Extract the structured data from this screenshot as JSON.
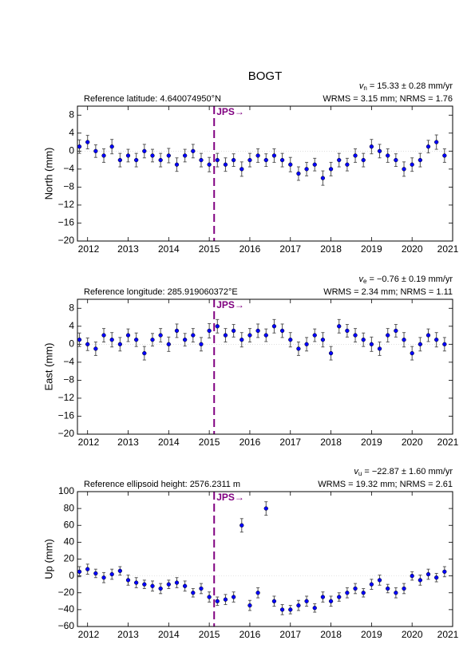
{
  "chart_data": [
    {
      "type": "scatter",
      "title": "BOGT",
      "ylabel": "North (mm)",
      "reference": "Reference latitude: 4.640074950°N",
      "velocity": {
        "symbol": "v",
        "subscript": "n",
        "text": " = 15.33 ± 0.28 mm/yr"
      },
      "stats": "WRMS = 3.15 mm; NRMS = 1.76",
      "event": {
        "label": "JPS→",
        "x": 2015.12,
        "color": "#800080"
      },
      "xlim": [
        2011.75,
        2021
      ],
      "xticks": [
        2012,
        2013,
        2014,
        2015,
        2016,
        2017,
        2018,
        2019,
        2020,
        2021
      ],
      "ylim": [
        -20,
        10
      ],
      "yticks": [
        {
          "value": -20,
          "label": "−20"
        },
        {
          "value": -16,
          "label": "−16"
        },
        {
          "value": -12,
          "label": "−12"
        },
        {
          "value": -8,
          "label": "−8"
        },
        {
          "value": -4,
          "label": "−4"
        },
        0,
        4,
        8
      ],
      "color": "#0000ff",
      "error_color": "#555555",
      "x": [
        2011.8,
        2012.0,
        2012.2,
        2012.4,
        2012.6,
        2012.8,
        2013.0,
        2013.2,
        2013.4,
        2013.6,
        2013.8,
        2014.0,
        2014.2,
        2014.4,
        2014.6,
        2014.8,
        2015.0,
        2015.2,
        2015.4,
        2015.6,
        2015.8,
        2016.0,
        2016.2,
        2016.4,
        2016.6,
        2016.8,
        2017.0,
        2017.2,
        2017.4,
        2017.6,
        2017.8,
        2018.0,
        2018.2,
        2018.4,
        2018.6,
        2018.8,
        2019.0,
        2019.2,
        2019.4,
        2019.6,
        2019.8,
        2020.0,
        2020.2,
        2020.4,
        2020.6,
        2020.8
      ],
      "values": [
        1,
        2,
        0,
        -1,
        1,
        -2,
        -1,
        -2,
        0,
        -1,
        -2,
        -1,
        -3,
        -1,
        0,
        -2,
        -3,
        -2,
        -3,
        -2,
        -4,
        -2,
        -1,
        -2,
        -1,
        -2,
        -3,
        -5,
        -4,
        -3,
        -6,
        -4,
        -2,
        -3,
        -1,
        -2,
        1,
        0,
        -1,
        -2,
        -4,
        -3,
        -2,
        1,
        2,
        -1
      ],
      "errors": [
        1.5,
        1.5,
        1.4,
        1.5,
        1.6,
        1.5,
        1.4,
        1.5,
        1.5,
        1.4,
        1.5,
        1.6,
        1.5,
        1.4,
        1.5,
        1.5,
        1.6,
        1.5,
        1.5,
        1.4,
        1.6,
        1.5,
        1.5,
        1.4,
        1.5,
        1.5,
        1.6,
        1.5,
        1.5,
        1.4,
        1.6,
        1.5,
        1.5,
        1.4,
        1.5,
        1.5,
        1.6,
        1.5,
        1.5,
        1.4,
        1.6,
        1.5,
        1.5,
        1.4,
        1.6,
        1.5
      ]
    },
    {
      "type": "scatter",
      "ylabel": "East (mm)",
      "reference": "Reference longitude: 285.919060372°E",
      "velocity": {
        "symbol": "v",
        "subscript": "e",
        "text": " = −0.76 ± 0.19 mm/yr"
      },
      "stats": "WRMS = 2.34 mm; NRMS = 1.11",
      "event": {
        "label": "JPS→",
        "x": 2015.12,
        "color": "#800080"
      },
      "xlim": [
        2011.75,
        2021
      ],
      "xticks": [
        2012,
        2013,
        2014,
        2015,
        2016,
        2017,
        2018,
        2019,
        2020,
        2021
      ],
      "ylim": [
        -20,
        10
      ],
      "yticks": [
        {
          "value": -20,
          "label": "−20"
        },
        {
          "value": -16,
          "label": "−16"
        },
        {
          "value": -12,
          "label": "−12"
        },
        {
          "value": -8,
          "label": "−8"
        },
        {
          "value": -4,
          "label": "−4"
        },
        0,
        4,
        8
      ],
      "color": "#0000ff",
      "error_color": "#555555",
      "x": [
        2011.8,
        2012.0,
        2012.2,
        2012.4,
        2012.6,
        2012.8,
        2013.0,
        2013.2,
        2013.4,
        2013.6,
        2013.8,
        2014.0,
        2014.2,
        2014.4,
        2014.6,
        2014.8,
        2015.0,
        2015.2,
        2015.4,
        2015.6,
        2015.8,
        2016.0,
        2016.2,
        2016.4,
        2016.6,
        2016.8,
        2017.0,
        2017.2,
        2017.4,
        2017.6,
        2017.8,
        2018.0,
        2018.2,
        2018.4,
        2018.6,
        2018.8,
        2019.0,
        2019.2,
        2019.4,
        2019.6,
        2019.8,
        2020.0,
        2020.2,
        2020.4,
        2020.6,
        2020.8
      ],
      "values": [
        1,
        0,
        -1,
        2,
        1,
        0,
        2,
        1,
        -2,
        1,
        2,
        0,
        3,
        1,
        2,
        0,
        3,
        4,
        2,
        3,
        1,
        2,
        3,
        2,
        4,
        3,
        1,
        -1,
        0,
        2,
        1,
        -2,
        4,
        3,
        2,
        1,
        0,
        -1,
        2,
        3,
        1,
        -2,
        0,
        2,
        1,
        0
      ],
      "errors": [
        1.5,
        1.4,
        1.5,
        1.5,
        1.6,
        1.5,
        1.4,
        1.5,
        1.5,
        1.4,
        1.5,
        1.6,
        1.5,
        1.4,
        1.5,
        1.5,
        1.6,
        1.5,
        1.5,
        1.4,
        1.6,
        1.5,
        1.5,
        1.4,
        1.5,
        1.5,
        1.6,
        1.5,
        1.5,
        1.4,
        1.6,
        1.5,
        1.5,
        1.4,
        1.5,
        1.5,
        1.6,
        1.5,
        1.5,
        1.4,
        1.6,
        1.5,
        1.5,
        1.4,
        1.6,
        1.5
      ]
    },
    {
      "type": "scatter",
      "ylabel": "Up (mm)",
      "reference": "Reference ellipsoid height: 2576.2311 m",
      "velocity": {
        "symbol": "v",
        "subscript": "u",
        "text": " = −22.87 ± 1.60 mm/yr"
      },
      "stats": "WRMS = 19.32 mm; NRMS = 2.61",
      "event": {
        "label": "JPS→",
        "x": 2015.12,
        "color": "#800080"
      },
      "xlim": [
        2011.75,
        2021
      ],
      "xticks": [
        2012,
        2013,
        2014,
        2015,
        2016,
        2017,
        2018,
        2019,
        2020,
        2021
      ],
      "ylim": [
        -60,
        100
      ],
      "yticks": [
        {
          "value": -60,
          "label": "−60"
        },
        {
          "value": -40,
          "label": "−40"
        },
        {
          "value": -20,
          "label": "−20"
        },
        0,
        20,
        40,
        60,
        80,
        100
      ],
      "color": "#0000ff",
      "error_color": "#555555",
      "x": [
        2011.8,
        2012.0,
        2012.2,
        2012.4,
        2012.6,
        2012.8,
        2013.0,
        2013.2,
        2013.4,
        2013.6,
        2013.8,
        2014.0,
        2014.2,
        2014.4,
        2014.6,
        2014.8,
        2015.0,
        2015.2,
        2015.4,
        2015.6,
        2015.8,
        2016.0,
        2016.2,
        2016.4,
        2016.6,
        2016.8,
        2017.0,
        2017.2,
        2017.4,
        2017.6,
        2017.8,
        2018.0,
        2018.2,
        2018.4,
        2018.6,
        2018.8,
        2019.0,
        2019.2,
        2019.4,
        2019.6,
        2019.8,
        2020.0,
        2020.2,
        2020.4,
        2020.6,
        2020.8
      ],
      "values": [
        5,
        8,
        3,
        -2,
        2,
        6,
        -5,
        -8,
        -10,
        -12,
        -15,
        -10,
        -8,
        -12,
        -20,
        -15,
        -25,
        -30,
        -28,
        -25,
        60,
        -35,
        -20,
        80,
        -30,
        -40,
        -40,
        -35,
        -30,
        -38,
        -25,
        -30,
        -25,
        -20,
        -15,
        -20,
        -10,
        -5,
        -15,
        -20,
        -15,
        0,
        -5,
        2,
        -2,
        5
      ],
      "errors": [
        6,
        6,
        5,
        6,
        6,
        5,
        6,
        6,
        5,
        6,
        6,
        5,
        6,
        6,
        5,
        6,
        6,
        5,
        6,
        6,
        8,
        6,
        6,
        8,
        6,
        6,
        5,
        6,
        6,
        5,
        6,
        6,
        5,
        6,
        6,
        5,
        6,
        6,
        5,
        6,
        6,
        5,
        6,
        6,
        5,
        6
      ]
    }
  ]
}
